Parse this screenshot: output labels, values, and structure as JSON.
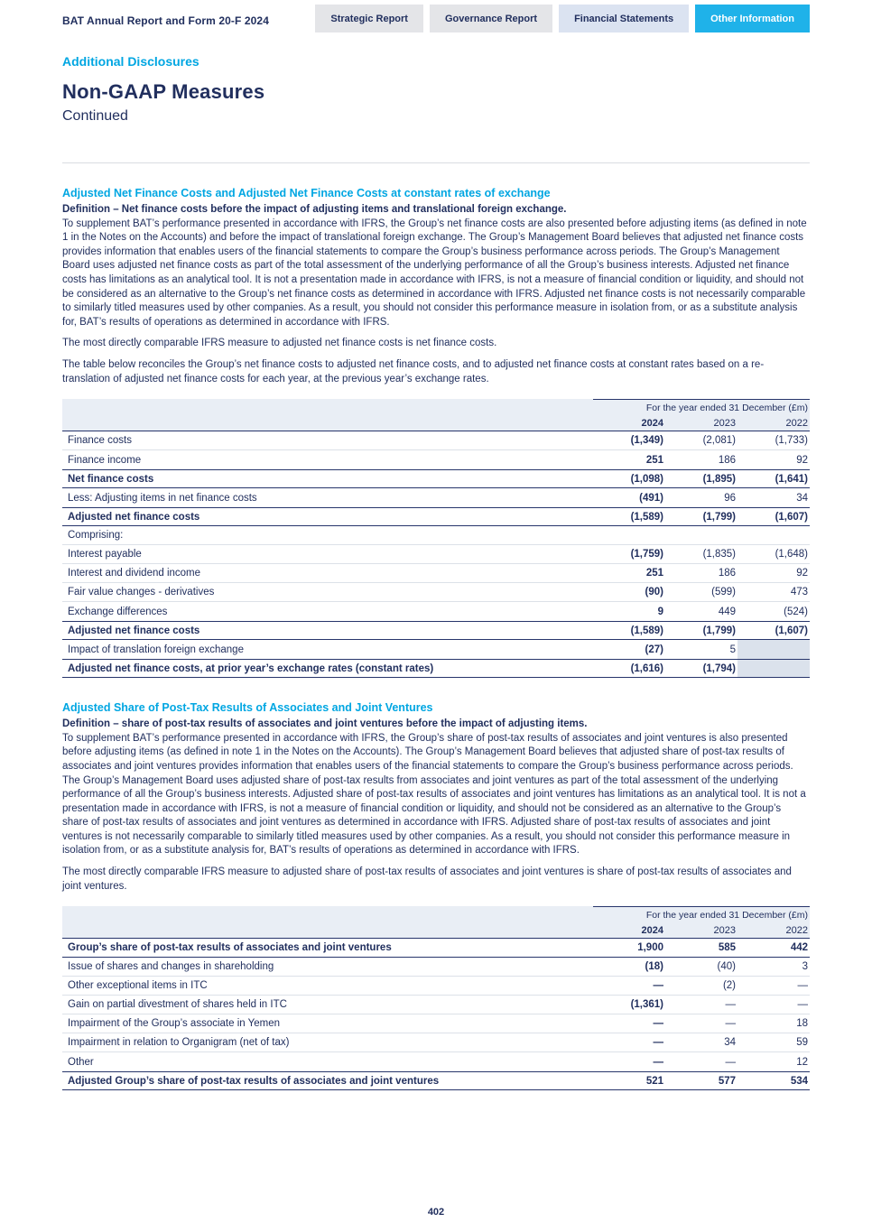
{
  "header": {
    "doc_title": "BAT Annual Report and Form 20-F 2024",
    "tabs": [
      {
        "label": "Strategic Report"
      },
      {
        "label": "Governance Report"
      },
      {
        "label": "Financial Statements"
      },
      {
        "label": "Other Information"
      }
    ],
    "active_tab": "Other Information"
  },
  "page": {
    "eyebrow": "Additional Disclosures",
    "title": "Non-GAAP Measures",
    "subtitle": "Continued",
    "page_number": "402"
  },
  "colors": {
    "accent": "#00a6e2",
    "navy_text": "#212f5e",
    "active_tab_bg": "#1fb2e9",
    "table_header_bg": "#e9eef5",
    "shaded_cell_bg": "#dbe2ec"
  },
  "section1": {
    "heading": "Adjusted Net Finance Costs and Adjusted Net Finance Costs at constant rates of exchange",
    "definition": "Definition – Net finance costs before the impact of adjusting items and translational foreign exchange.",
    "p1": "To supplement BAT’s performance presented in accordance with IFRS, the Group’s net finance costs are also presented before adjusting items (as defined in note 1 in the Notes on the Accounts) and before the impact of translational foreign exchange. The Group’s Management Board believes that adjusted net finance costs provides information that enables users of the financial statements to compare the Group’s business performance across periods. The Group’s Management Board uses adjusted net finance costs as part of the total assessment of the underlying performance of all the Group’s business interests. Adjusted net finance costs has limitations as an analytical tool. It is not a presentation made in accordance with IFRS, is not a measure of financial condition or liquidity, and should not be considered as an alternative to the Group’s net finance costs as determined in accordance with IFRS. Adjusted net finance costs is not necessarily comparable to similarly titled measures used by other companies. As a result, you should not consider this performance measure in isolation from, or as a substitute analysis for, BAT’s results of operations as determined in accordance with IFRS.",
    "p2": "The most directly comparable IFRS measure to adjusted net finance costs is net finance costs.",
    "p3": "The table below reconciles the Group’s net finance costs to adjusted net finance costs, and to adjusted net finance costs at constant rates based on a re-translation of adjusted net finance costs for each year, at the previous year’s exchange rates.",
    "table": {
      "period_label": "For the year ended 31 December (£m)",
      "years": [
        "2024",
        "2023",
        "2022"
      ],
      "rows": [
        {
          "label": "Finance costs",
          "bold": false,
          "values": [
            "(1,349)",
            "(2,081)",
            "(1,733)"
          ]
        },
        {
          "label": "Finance income",
          "bold": false,
          "values": [
            "251",
            "186",
            "92"
          ]
        },
        {
          "label": "Net finance costs",
          "bold": true,
          "values": [
            "(1,098)",
            "(1,895)",
            "(1,641)"
          ]
        },
        {
          "label": "Less: Adjusting items in net finance costs",
          "bold": false,
          "values": [
            "(491)",
            "96",
            "34"
          ]
        },
        {
          "label": "Adjusted net finance costs",
          "bold": true,
          "values": [
            "(1,589)",
            "(1,799)",
            "(1,607)"
          ]
        },
        {
          "label": "Comprising:",
          "bold": false,
          "values": [
            "",
            "",
            ""
          ]
        },
        {
          "label": "Interest payable",
          "bold": false,
          "values": [
            "(1,759)",
            "(1,835)",
            "(1,648)"
          ]
        },
        {
          "label": "Interest and dividend income",
          "bold": false,
          "values": [
            "251",
            "186",
            "92"
          ]
        },
        {
          "label": "Fair value changes - derivatives",
          "bold": false,
          "values": [
            "(90)",
            "(599)",
            "473"
          ]
        },
        {
          "label": "Exchange differences",
          "bold": false,
          "values": [
            "9",
            "449",
            "(524)"
          ]
        },
        {
          "label": "Adjusted net finance costs",
          "bold": true,
          "values": [
            "(1,589)",
            "(1,799)",
            "(1,607)"
          ]
        },
        {
          "label": "Impact of translation foreign exchange",
          "bold": false,
          "values": [
            "(27)",
            "5",
            null
          ]
        },
        {
          "label": "Adjusted net finance costs, at prior year’s exchange rates (constant rates)",
          "bold": true,
          "values": [
            "(1,616)",
            "(1,794)",
            null
          ]
        }
      ]
    }
  },
  "section2": {
    "heading": "Adjusted Share of Post-Tax Results of Associates and Joint Ventures",
    "definition": "Definition – share of post-tax results of associates and joint ventures before the impact of adjusting items.",
    "p1": "To supplement BAT’s performance presented in accordance with IFRS, the Group’s share of post-tax results of associates and joint ventures is also presented before adjusting items (as defined in note 1 in the Notes on the Accounts). The Group’s Management Board believes that adjusted share of post-tax results of associates and joint ventures provides information that enables users of the financial statements to compare the Group’s business performance across periods. The Group’s Management Board uses adjusted share of post-tax results from associates and joint ventures as part of the total assessment of the underlying performance of all the Group’s business interests. Adjusted share of post-tax results of associates and joint ventures has limitations as an analytical tool. It is not a presentation made in accordance with IFRS, is not a measure of financial condition or liquidity, and should not be considered as an alternative to the Group’s share of post-tax results of associates and joint ventures as determined in accordance with IFRS. Adjusted share of post-tax results of associates and joint ventures is not necessarily comparable to similarly titled measures used by other companies. As a result, you should not consider this performance measure in isolation from, or as a substitute analysis for, BAT’s results of operations as determined in accordance with IFRS.",
    "p2": "The most directly comparable IFRS measure to adjusted share of post-tax results of associates and joint ventures is share of post-tax results of associates and joint ventures.",
    "table": {
      "period_label": "For the year ended 31 December (£m)",
      "years": [
        "2024",
        "2023",
        "2022"
      ],
      "rows": [
        {
          "label": "Group’s share of post-tax results of associates and joint ventures",
          "bold": true,
          "values": [
            "1,900",
            "585",
            "442"
          ]
        },
        {
          "label": "Issue of shares and changes in shareholding",
          "bold": false,
          "values": [
            "(18)",
            "(40)",
            "3"
          ]
        },
        {
          "label": "Other exceptional items in ITC",
          "bold": false,
          "values": [
            "—",
            "(2)",
            "—"
          ]
        },
        {
          "label": "Gain on partial divestment of shares held in ITC",
          "bold": false,
          "values": [
            "(1,361)",
            "—",
            "—"
          ]
        },
        {
          "label": "Impairment of the Group’s associate in Yemen",
          "bold": false,
          "values": [
            "—",
            "—",
            "18"
          ]
        },
        {
          "label": "Impairment in relation to Organigram (net of tax)",
          "bold": false,
          "values": [
            "—",
            "34",
            "59"
          ]
        },
        {
          "label": "Other",
          "bold": false,
          "values": [
            "—",
            "—",
            "12"
          ]
        },
        {
          "label": "Adjusted Group’s share of post-tax results of associates and joint ventures",
          "bold": true,
          "values": [
            "521",
            "577",
            "534"
          ]
        }
      ]
    }
  }
}
